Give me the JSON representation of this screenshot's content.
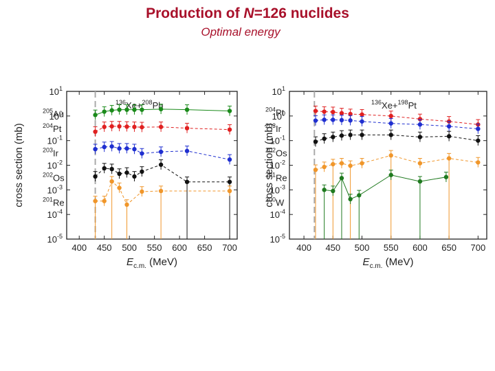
{
  "title": {
    "prefix": "Production of ",
    "n": "N",
    "suffix": "=126 nuclides"
  },
  "subtitle": "Optimal energy",
  "chart_data": [
    {
      "type": "scatter",
      "reaction": {
        "projectile_mass": "136",
        "projectile": "Xe+",
        "target_mass": "208",
        "target": "Pb"
      },
      "xlabel": "E",
      "xlabel_sub": "c.m.",
      "xlabel_unit": " (MeV)",
      "ylabel": "cross section (mb)",
      "xlim": [
        375,
        715
      ],
      "ylim_log10": [
        -5,
        1
      ],
      "xticks": [
        400,
        450,
        500,
        550,
        600,
        650,
        700
      ],
      "yticks": [
        {
          "m": "10",
          "e": "1",
          "v": 1
        },
        {
          "m": "10",
          "e": "0",
          "v": 0
        },
        {
          "m": "10",
          "e": "-1",
          "v": -1
        },
        {
          "m": "10",
          "e": "-2",
          "v": -2
        },
        {
          "m": "10",
          "e": "-3",
          "v": -3
        },
        {
          "m": "10",
          "e": "-4",
          "v": -4
        },
        {
          "m": "10",
          "e": "-5",
          "v": -5
        }
      ],
      "barrier_x": 432,
      "series": [
        {
          "name": "Au",
          "mass": "205",
          "color": "#1a8a1a",
          "x": [
            432,
            450,
            465,
            480,
            495,
            510,
            525,
            563,
            615,
            700
          ],
          "y": [
            1.1,
            1.5,
            1.7,
            1.8,
            1.8,
            1.8,
            1.8,
            1.9,
            1.8,
            1.6
          ]
        },
        {
          "name": "Pt",
          "mass": "204",
          "color": "#e02020",
          "x": [
            432,
            450,
            465,
            480,
            495,
            510,
            525,
            563,
            615,
            700
          ],
          "y": [
            0.23,
            0.36,
            0.38,
            0.38,
            0.37,
            0.36,
            0.35,
            0.36,
            0.32,
            0.28
          ]
        },
        {
          "name": "Ir",
          "mass": "203",
          "color": "#1f2fd0",
          "x": [
            432,
            450,
            465,
            480,
            495,
            510,
            525,
            563,
            615,
            700
          ],
          "y": [
            0.045,
            0.055,
            0.058,
            0.048,
            0.048,
            0.045,
            0.03,
            0.035,
            0.038,
            0.017
          ]
        },
        {
          "name": "Os",
          "mass": "202",
          "color": "#111111",
          "x": [
            432,
            450,
            465,
            480,
            495,
            510,
            525,
            563,
            615,
            700
          ],
          "y": [
            0.0035,
            0.0075,
            0.007,
            0.0045,
            0.005,
            0.0035,
            0.0055,
            0.0105,
            0.0021,
            0.0021
          ]
        },
        {
          "name": "Re",
          "mass": "201",
          "color": "#f0962a",
          "x": [
            432,
            450,
            465,
            480,
            495,
            525,
            563,
            700
          ],
          "y": [
            0.00035,
            0.00035,
            0.0022,
            0.0012,
            0.00025,
            0.00085,
            0.0009,
            0.0009
          ]
        }
      ]
    },
    {
      "type": "scatter",
      "reaction": {
        "projectile_mass": "136",
        "projectile": "Xe+",
        "target_mass": "198",
        "target": "Pt"
      },
      "xlabel": "E",
      "xlabel_sub": "c.m.",
      "xlabel_unit": " (MeV)",
      "ylabel": "cross section (mb)",
      "xlim": [
        375,
        715
      ],
      "ylim_log10": [
        -5,
        1
      ],
      "xticks": [
        400,
        450,
        500,
        550,
        600,
        650,
        700
      ],
      "yticks": [
        {
          "m": "10",
          "e": "1",
          "v": 1
        },
        {
          "m": "10",
          "e": "0",
          "v": 0
        },
        {
          "m": "10",
          "e": "-1",
          "v": -1
        },
        {
          "m": "10",
          "e": "-2",
          "v": -2
        },
        {
          "m": "10",
          "e": "-3",
          "v": -3
        },
        {
          "m": "10",
          "e": "-4",
          "v": -4
        },
        {
          "m": "10",
          "e": "-5",
          "v": -5
        }
      ],
      "barrier_x": 418,
      "series": [
        {
          "name": "Pt",
          "mass": "204",
          "color": "#e02020",
          "x": [
            420,
            435,
            450,
            465,
            480,
            500,
            550,
            600,
            650,
            700
          ],
          "y": [
            1.6,
            1.5,
            1.45,
            1.3,
            1.2,
            1.15,
            1.0,
            0.75,
            0.6,
            0.45
          ]
        },
        {
          "name": "Ir",
          "mass": "203",
          "color": "#1f2fd0",
          "x": [
            420,
            435,
            450,
            465,
            480,
            500,
            550,
            600,
            650,
            700
          ],
          "y": [
            0.65,
            0.7,
            0.7,
            0.68,
            0.66,
            0.6,
            0.5,
            0.45,
            0.38,
            0.3
          ]
        },
        {
          "name": "Os",
          "mass": "202",
          "color": "#111111",
          "x": [
            420,
            435,
            450,
            465,
            480,
            500,
            550,
            600,
            650,
            700
          ],
          "y": [
            0.09,
            0.12,
            0.14,
            0.16,
            0.17,
            0.17,
            0.17,
            0.14,
            0.15,
            0.1
          ]
        },
        {
          "name": "Re",
          "mass": "201",
          "color": "#f0962a",
          "x": [
            420,
            435,
            450,
            465,
            480,
            500,
            550,
            600,
            650,
            700
          ],
          "y": [
            0.0065,
            0.0085,
            0.011,
            0.012,
            0.0095,
            0.012,
            0.025,
            0.012,
            0.019,
            0.013
          ]
        },
        {
          "name": "W",
          "mass": "200",
          "color": "#1f7a1f",
          "x": [
            435,
            450,
            465,
            480,
            495,
            550,
            600,
            645
          ],
          "y": [
            0.001,
            0.0009,
            0.003,
            0.00042,
            0.0006,
            0.004,
            0.0022,
            0.0033
          ]
        }
      ]
    }
  ]
}
